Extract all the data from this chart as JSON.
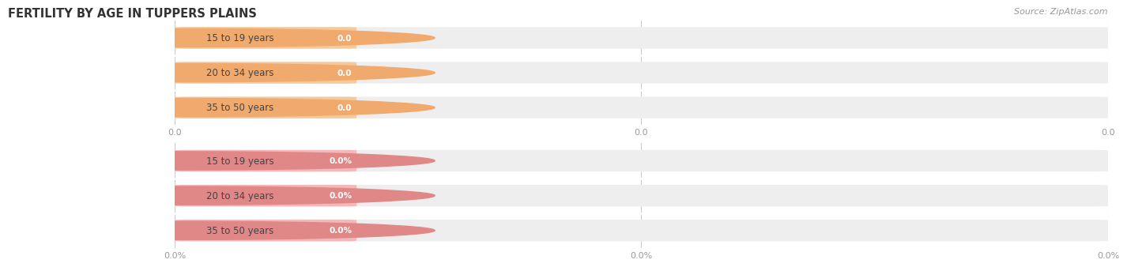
{
  "title": "FERTILITY BY AGE IN TUPPERS PLAINS",
  "source": "Source: ZipAtlas.com",
  "top_section": {
    "categories": [
      "15 to 19 years",
      "20 to 34 years",
      "35 to 50 years"
    ],
    "values": [
      0.0,
      0.0,
      0.0
    ],
    "bar_color": "#f5c99a",
    "circle_color": "#f0aa6e",
    "axis_tick_labels": [
      "0.0",
      "0.0",
      "0.0"
    ]
  },
  "bottom_section": {
    "categories": [
      "15 to 19 years",
      "20 to 34 years",
      "35 to 50 years"
    ],
    "values": [
      0.0,
      0.0,
      0.0
    ],
    "bar_color": "#f5b8b8",
    "circle_color": "#e08888",
    "axis_tick_labels": [
      "0.0%",
      "0.0%",
      "0.0%"
    ]
  },
  "bar_bg_color": "#eeeeee",
  "background_color": "#ffffff",
  "fig_width": 14.06,
  "fig_height": 3.31,
  "title_fontsize": 10.5,
  "label_fontsize": 8.5,
  "value_fontsize": 7.5,
  "tick_fontsize": 8,
  "source_fontsize": 8
}
